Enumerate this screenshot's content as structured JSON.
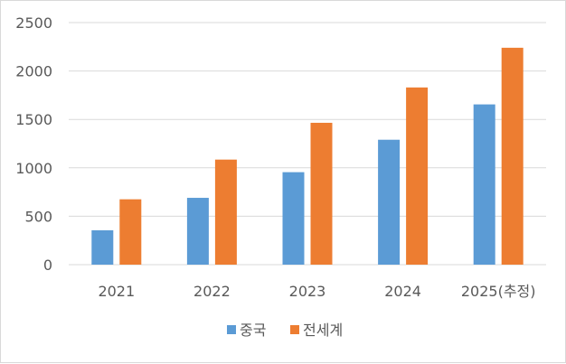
{
  "chart_data": {
    "type": "bar",
    "categories": [
      "2021",
      "2022",
      "2023",
      "2024",
      "2025(추정)"
    ],
    "series": [
      {
        "name": "중국",
        "color": "#5b9bd5",
        "values": [
          355,
          690,
          955,
          1290,
          1655
        ]
      },
      {
        "name": "전세계",
        "color": "#ed7d31",
        "values": [
          675,
          1085,
          1465,
          1830,
          2240
        ]
      }
    ],
    "ylim": [
      0,
      2500
    ],
    "yticks": [
      0,
      500,
      1000,
      1500,
      2000,
      2500
    ],
    "grid": true,
    "legend": "bottom",
    "title": "",
    "xlabel": "",
    "ylabel": ""
  }
}
